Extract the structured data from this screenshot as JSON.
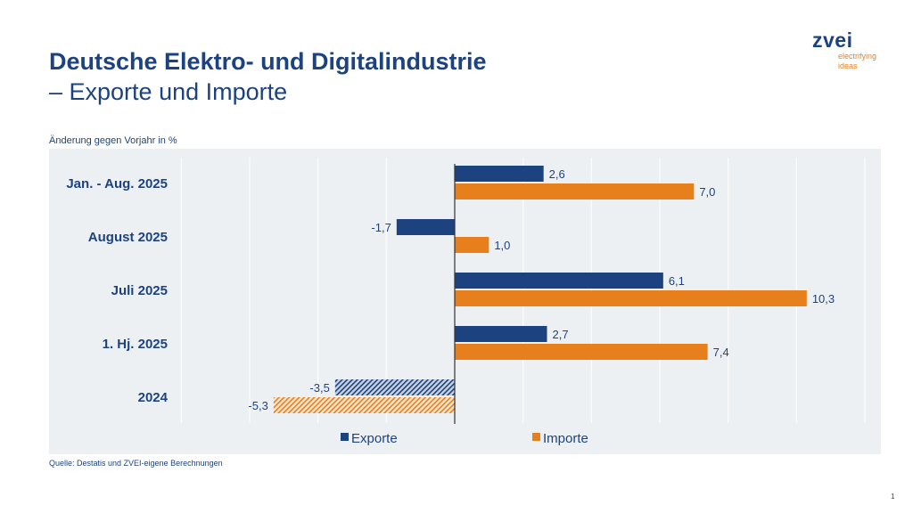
{
  "header": {
    "title": "Deutsche Elektro- und Digitalindustrie",
    "subtitle": "– Exporte und Importe"
  },
  "logo": {
    "name": "zvei",
    "tagline_1": "electrifying",
    "tagline_2": "ideas"
  },
  "footer": {
    "source": "Quelle: Destatis und ZVEI-eigene Berechnungen",
    "page_number": "1"
  },
  "chart_data": {
    "type": "bar",
    "orientation": "horizontal",
    "ylabel": "Änderung gegen Vorjahr in %",
    "categories": [
      "Jan. - Aug. 2025",
      "August 2025",
      "Juli 2025",
      "1. Hj. 2025",
      "2024"
    ],
    "series": [
      {
        "name": "Exporte",
        "color": "#1c437f",
        "values": [
          2.6,
          -1.7,
          6.1,
          2.7,
          -3.5
        ],
        "labels": [
          "2,6",
          "-1,7",
          "6,1",
          "2,7",
          "-3,5"
        ]
      },
      {
        "name": "Importe",
        "color": "#e87f1d",
        "values": [
          7.0,
          1.0,
          10.3,
          7.4,
          -5.3
        ],
        "labels": [
          "7,0",
          "1,0",
          "10,3",
          "7,4",
          "-5,3"
        ]
      }
    ],
    "hatched_category": "2024",
    "xlim": [
      -12,
      12
    ],
    "grid": true,
    "legend": "bottom"
  }
}
